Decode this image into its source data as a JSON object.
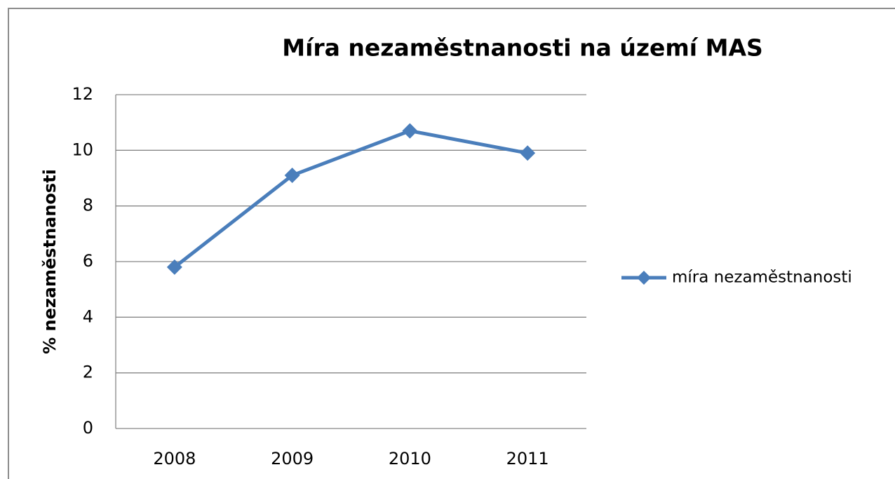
{
  "chart_data": {
    "type": "line",
    "title": "Míra nezaměstnanosti na území MAS",
    "y_label": "% nezaměstnanosti",
    "categories": [
      "2008",
      "2009",
      "2010",
      "2011"
    ],
    "series": [
      {
        "name": "míra nezaměstnanosti",
        "color": "#4a7ebb",
        "values": [
          5.8,
          9.1,
          10.7,
          9.9
        ]
      }
    ],
    "ylim": [
      0,
      12
    ],
    "yticks": [
      0,
      2,
      4,
      6,
      8,
      10,
      12
    ],
    "grid": true,
    "legend": "right"
  }
}
